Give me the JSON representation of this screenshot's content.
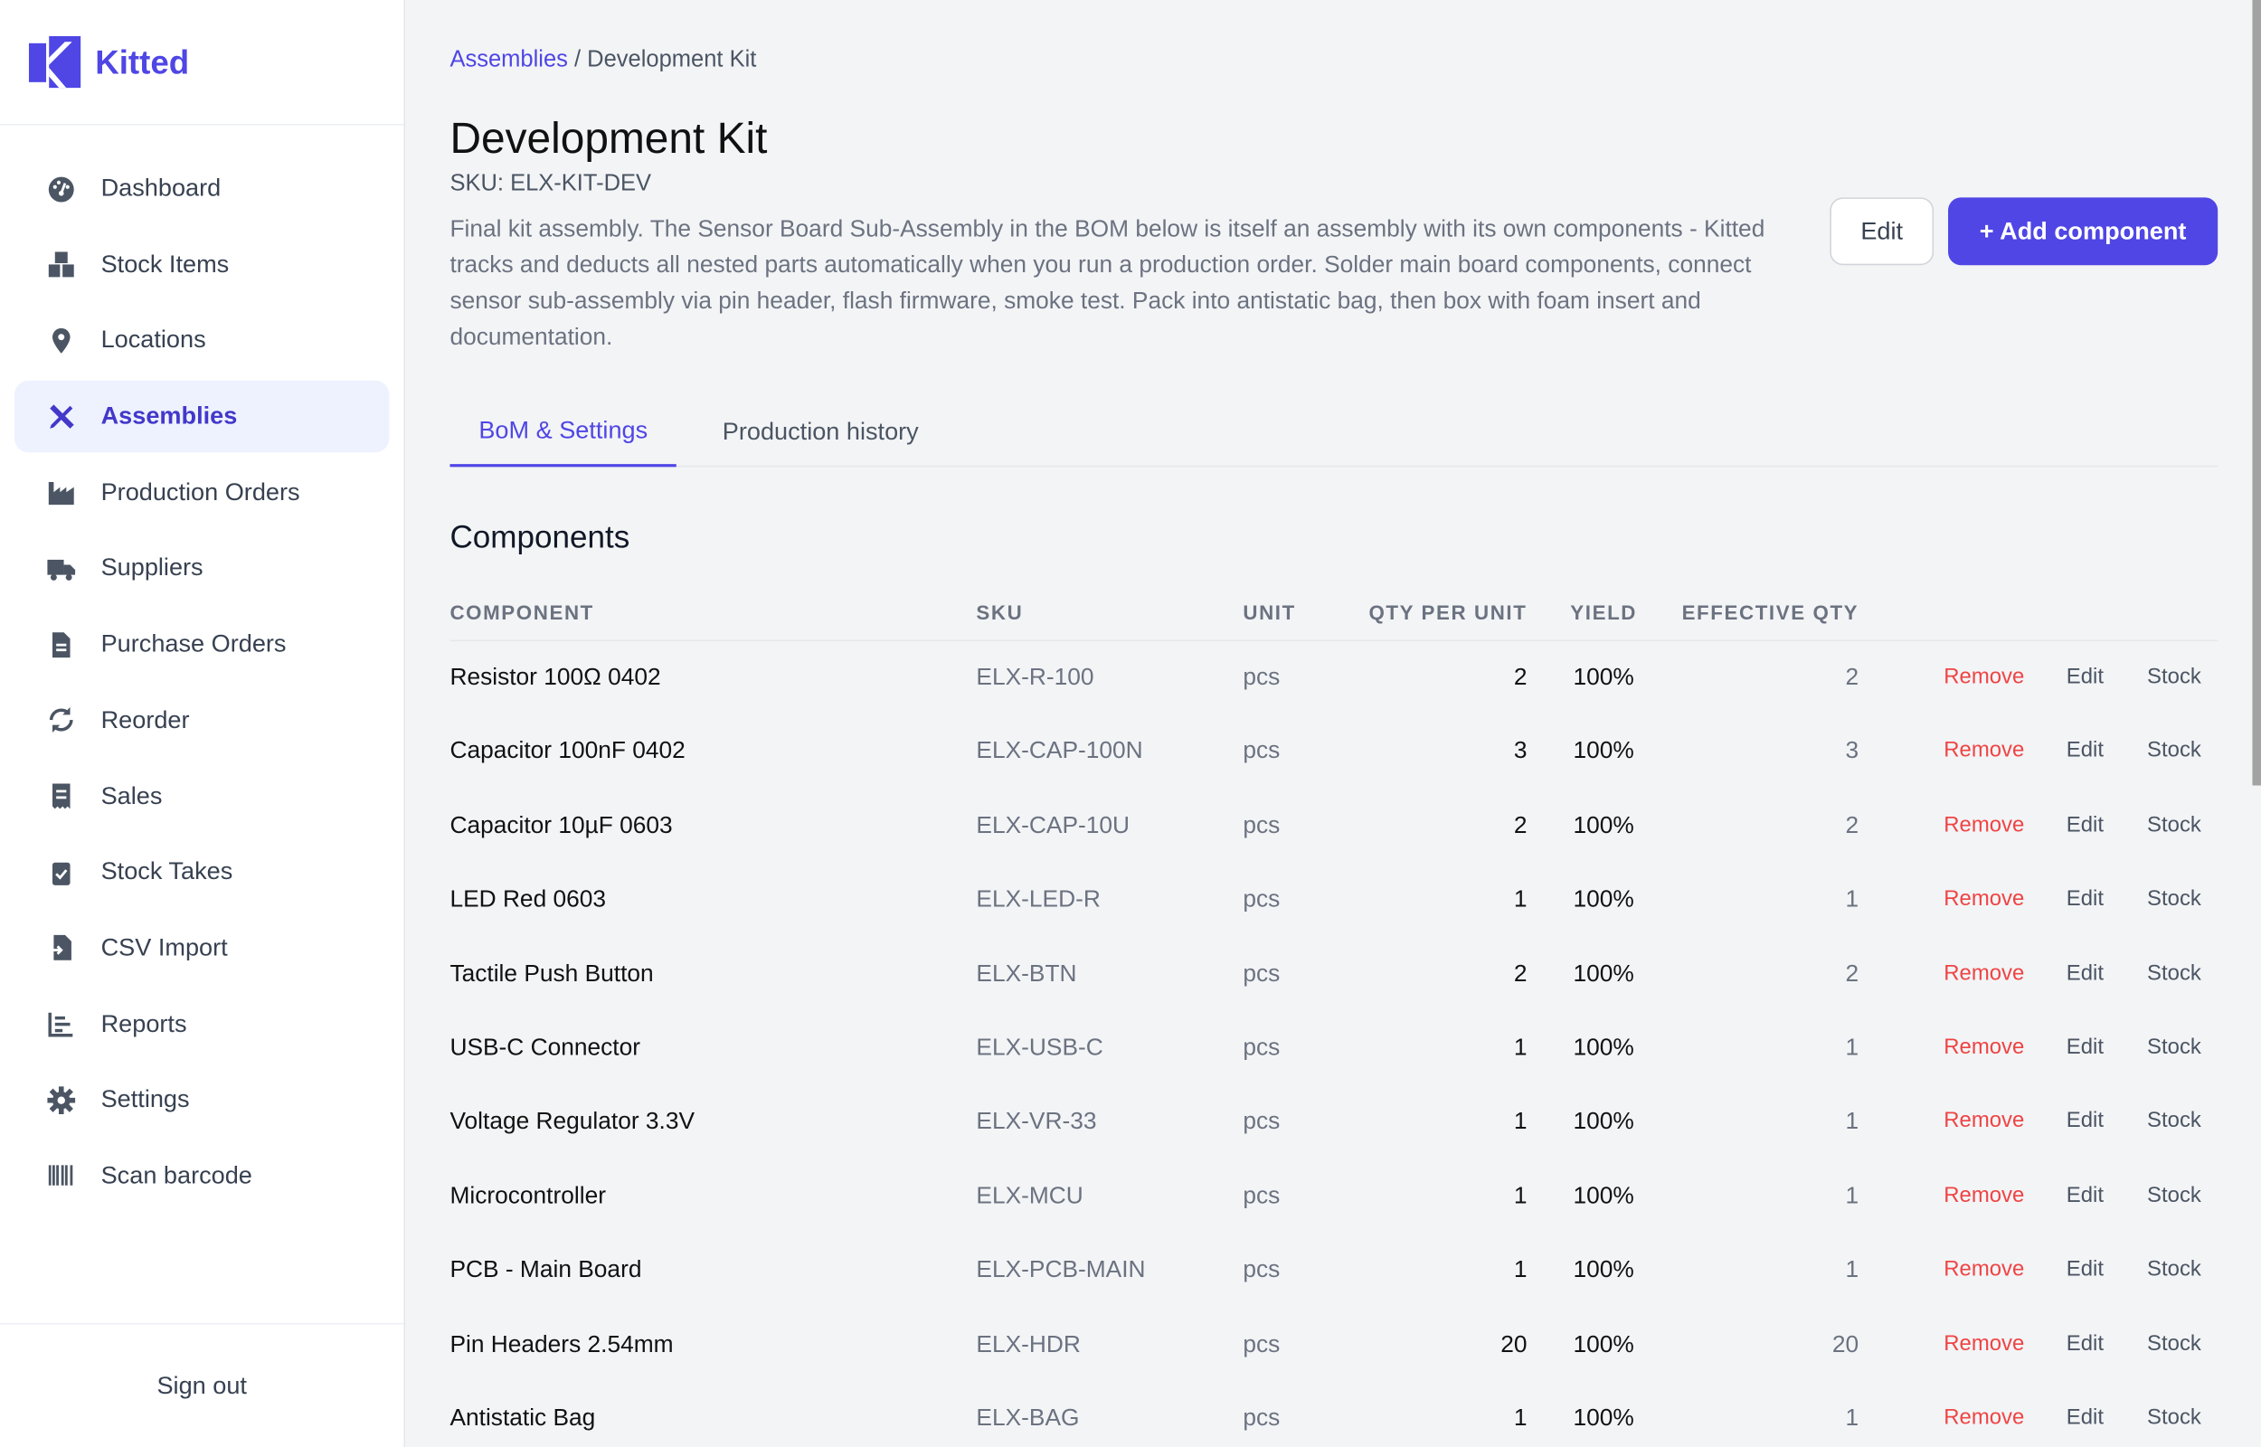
{
  "brand": {
    "name": "Kitted",
    "color": "#4f46e5"
  },
  "sidebar": {
    "items": [
      {
        "label": "Dashboard",
        "icon": "gauge-icon"
      },
      {
        "label": "Stock Items",
        "icon": "boxes-icon"
      },
      {
        "label": "Locations",
        "icon": "map-pin-icon"
      },
      {
        "label": "Assemblies",
        "icon": "tools-icon",
        "active": true
      },
      {
        "label": "Production Orders",
        "icon": "factory-icon"
      },
      {
        "label": "Suppliers",
        "icon": "truck-icon"
      },
      {
        "label": "Purchase Orders",
        "icon": "file-icon"
      },
      {
        "label": "Reorder",
        "icon": "refresh-icon"
      },
      {
        "label": "Sales",
        "icon": "receipt-icon"
      },
      {
        "label": "Stock Takes",
        "icon": "clipboard-check-icon"
      },
      {
        "label": "CSV Import",
        "icon": "file-import-icon"
      },
      {
        "label": "Reports",
        "icon": "chart-icon"
      },
      {
        "label": "Settings",
        "icon": "gear-icon"
      },
      {
        "label": "Scan barcode",
        "icon": "barcode-icon"
      }
    ],
    "signout": "Sign out"
  },
  "breadcrumb": {
    "parent": "Assemblies",
    "sep": " / ",
    "current": "Development Kit"
  },
  "page": {
    "title": "Development Kit",
    "sku": "SKU: ELX-KIT-DEV",
    "description": "Final kit assembly. The Sensor Board Sub-Assembly in the BOM below is itself an assembly with its own components - Kitted tracks and deducts all nested parts automatically when you run a production order. Solder main board components, connect sensor sub-assembly via pin header, flash firmware, smoke test. Pack into antistatic bag, then box with foam insert and documentation.",
    "edit": "Edit",
    "add": "+ Add component"
  },
  "tabs": [
    {
      "label": "BoM & Settings",
      "active": true
    },
    {
      "label": "Production history"
    }
  ],
  "components": {
    "title": "Components",
    "headers": [
      "COMPONENT",
      "SKU",
      "UNIT",
      "QTY PER UNIT",
      "YIELD",
      "EFFECTIVE QTY"
    ],
    "actions": {
      "remove": "Remove",
      "edit": "Edit",
      "stock": "Stock"
    },
    "rows": [
      [
        "Resistor 100Ω 0402",
        "ELX-R-100",
        "pcs",
        "2",
        "100%",
        "2"
      ],
      [
        "Capacitor 100nF 0402",
        "ELX-CAP-100N",
        "pcs",
        "3",
        "100%",
        "3"
      ],
      [
        "Capacitor 10µF 0603",
        "ELX-CAP-10U",
        "pcs",
        "2",
        "100%",
        "2"
      ],
      [
        "LED Red 0603",
        "ELX-LED-R",
        "pcs",
        "1",
        "100%",
        "1"
      ],
      [
        "Tactile Push Button",
        "ELX-BTN",
        "pcs",
        "2",
        "100%",
        "2"
      ],
      [
        "USB-C Connector",
        "ELX-USB-C",
        "pcs",
        "1",
        "100%",
        "1"
      ],
      [
        "Voltage Regulator 3.3V",
        "ELX-VR-33",
        "pcs",
        "1",
        "100%",
        "1"
      ],
      [
        "Microcontroller",
        "ELX-MCU",
        "pcs",
        "1",
        "100%",
        "1"
      ],
      [
        "PCB - Main Board",
        "ELX-PCB-MAIN",
        "pcs",
        "1",
        "100%",
        "1"
      ],
      [
        "Pin Headers 2.54mm",
        "ELX-HDR",
        "pcs",
        "20",
        "100%",
        "20"
      ],
      [
        "Antistatic Bag",
        "ELX-BAG",
        "pcs",
        "1",
        "100%",
        "1"
      ]
    ]
  }
}
